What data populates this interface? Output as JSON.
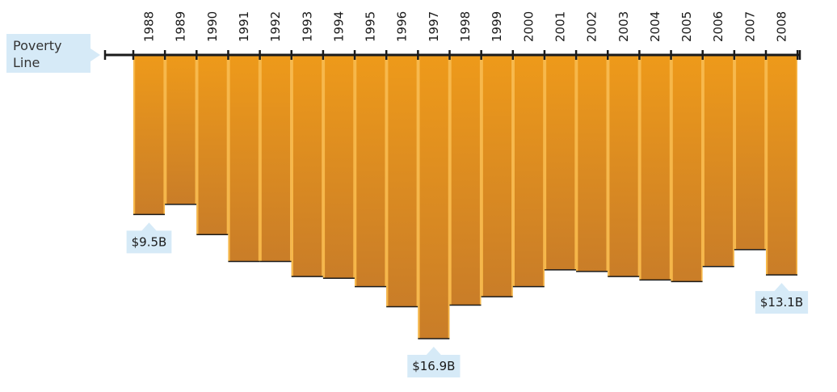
{
  "poverty_label": {
    "line1": "Poverty",
    "line2": "Line"
  },
  "colors": {
    "bar_top": "#ee9a1a",
    "bar_bottom": "#c97d28",
    "bar_edge": "#f7b84a",
    "axis": "#1a1a1a",
    "callout_bg": "#d6eaf7"
  },
  "chart_data": {
    "type": "bar",
    "orientation": "downward",
    "title": "",
    "xlabel": "",
    "ylabel": "",
    "unit": "$B",
    "categories": [
      "1988",
      "1989",
      "1990",
      "1991",
      "1992",
      "1993",
      "1994",
      "1995",
      "1996",
      "1997",
      "1998",
      "1999",
      "2000",
      "2001",
      "2002",
      "2003",
      "2004",
      "2005",
      "2006",
      "2007",
      "2008"
    ],
    "values": [
      9.5,
      8.9,
      10.7,
      12.3,
      12.3,
      13.2,
      13.3,
      13.8,
      15.0,
      16.9,
      14.9,
      14.4,
      13.8,
      12.8,
      12.9,
      13.2,
      13.4,
      13.5,
      12.6,
      11.6,
      13.1
    ],
    "annotations": [
      {
        "category": "1988",
        "text": "$9.5B"
      },
      {
        "category": "1997",
        "text": "$16.9B"
      },
      {
        "category": "2008",
        "text": "$13.1B"
      }
    ]
  }
}
